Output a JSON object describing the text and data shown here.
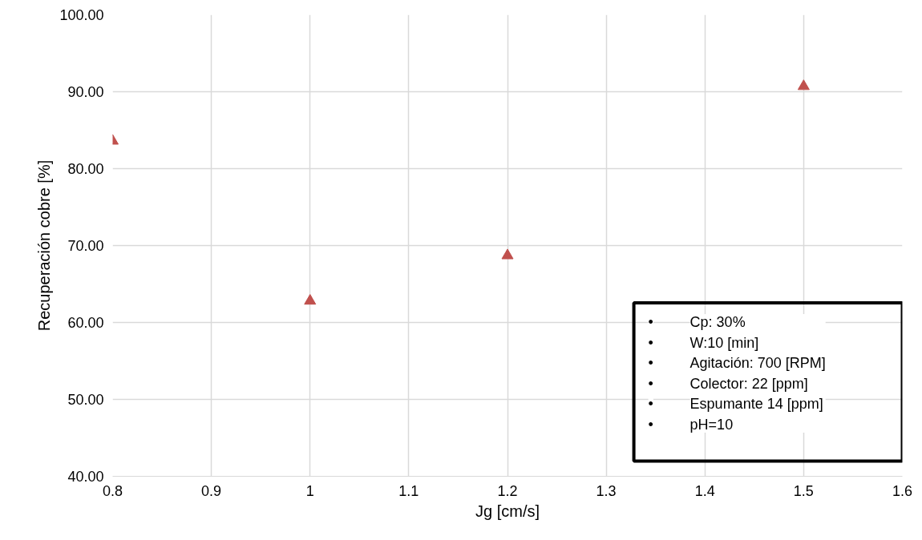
{
  "chart_data": {
    "type": "scatter",
    "xlabel": "Jg [cm/s]",
    "ylabel": "Recuperación cobre [%]",
    "x": [
      0.8,
      1.0,
      1.2,
      1.5
    ],
    "series": [
      {
        "color": "#c0504d",
        "values": [
          83.6,
          62.8,
          68.7,
          90.7
        ]
      }
    ],
    "marker": "triangle",
    "grid": true,
    "xlim": [
      0.8,
      1.6
    ],
    "xticks": [
      0.8,
      0.9,
      1,
      1.1,
      1.2,
      1.3,
      1.4,
      1.5,
      1.6
    ],
    "ylim": [
      40,
      100
    ],
    "yticks": [
      {
        "value": 40,
        "label": "40.00"
      },
      {
        "value": 50,
        "label": "50.00"
      },
      {
        "value": 60,
        "label": "60.00"
      },
      {
        "value": 70,
        "label": "70.00"
      },
      {
        "value": 80,
        "label": "80.00"
      },
      {
        "value": 90,
        "label": "90.00"
      },
      {
        "value": 100,
        "label": "100.00"
      }
    ],
    "annotations": [
      "• Cp: 30%",
      "• W:10 [min]",
      "• Agitación: 700 [RPM]",
      "• Colector: 22 [ppm]",
      "• Espumante 14 [ppm]",
      "• pH=10"
    ]
  }
}
